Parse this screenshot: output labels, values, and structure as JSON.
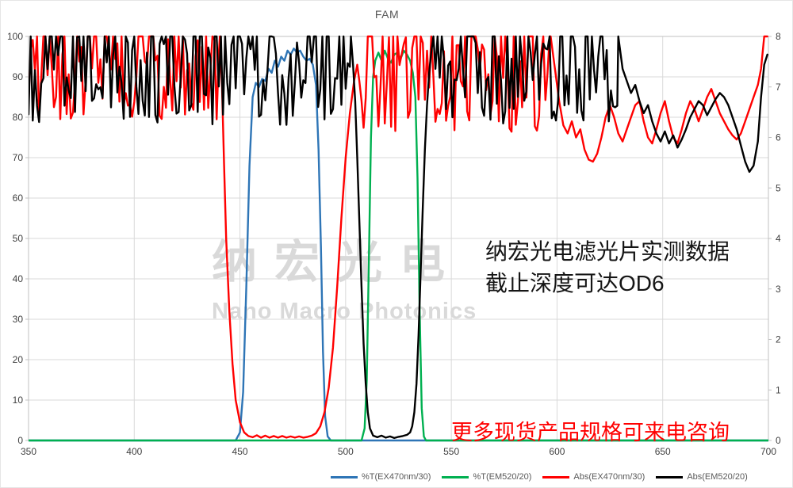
{
  "title": "FAM",
  "watermark": {
    "cjk": "纳宏光电",
    "latin": "Nano Macro Photonics"
  },
  "annotation": {
    "line1": "纳宏光电滤光片实测数据",
    "line2": "截止深度可达OD6"
  },
  "footer_note": "更多现货产品规格可来电咨询",
  "colors": {
    "blue": "#2E75B6",
    "green": "#00B050",
    "red": "#FF0000",
    "black": "#000000",
    "grid": "#D9D9D9",
    "axis_border": "#C0C0C0",
    "tick_text": "#404040",
    "title_text": "#595959",
    "watermark": "#D9D9D9",
    "note_red": "#FF0000"
  },
  "chart_data": {
    "type": "line",
    "title": "FAM",
    "x_axis": {
      "min": 350,
      "max": 700,
      "ticks": [
        350,
        400,
        450,
        500,
        550,
        600,
        650,
        700
      ]
    },
    "y_left": {
      "min": 0,
      "max": 100,
      "ticks": [
        0,
        10,
        20,
        30,
        40,
        50,
        60,
        70,
        80,
        90,
        100
      ]
    },
    "y_right": {
      "min": 0,
      "max": 8,
      "ticks": [
        0,
        1,
        2,
        3,
        4,
        5,
        6,
        7,
        8
      ]
    },
    "grid": true,
    "legend_position": "bottom",
    "legend": [
      {
        "label": "%T(EX470nm/30)",
        "color": "#2E75B6"
      },
      {
        "label": "%T(EM520/20)",
        "color": "#00B050"
      },
      {
        "label": "Abs(EX470nm/30)",
        "color": "#FF0000"
      },
      {
        "label": "Abs(EM520/20)",
        "color": "#000000"
      }
    ],
    "series": [
      {
        "name": "%T(EX470nm/30)",
        "color": "#2E75B6",
        "axis": "left",
        "segments": [
          {
            "type": "points",
            "pts": [
              [
                350,
                0
              ],
              [
                448,
                0
              ],
              [
                450,
                2
              ],
              [
                451.5,
                12
              ],
              [
                453,
                38
              ],
              [
                454.5,
                68
              ],
              [
                456,
                85
              ],
              [
                457.5,
                88.5
              ],
              [
                459,
                87.5
              ],
              [
                460.5,
                89.5
              ],
              [
                462,
                89
              ],
              [
                463.5,
                92
              ],
              [
                465,
                91
              ],
              [
                466.5,
                94
              ],
              [
                468,
                92.5
              ],
              [
                469.5,
                95
              ],
              [
                471,
                94
              ],
              [
                472.5,
                96.5
              ],
              [
                474,
                95.5
              ],
              [
                475.5,
                97
              ],
              [
                477,
                96
              ],
              [
                478.5,
                96.5
              ],
              [
                480,
                95
              ],
              [
                481.5,
                94
              ],
              [
                483,
                94.5
              ],
              [
                484.5,
                93
              ],
              [
                486,
                88
              ],
              [
                487.2,
                72
              ],
              [
                488.3,
                48
              ],
              [
                489.3,
                22
              ],
              [
                490.3,
                6
              ],
              [
                491.5,
                1
              ],
              [
                493,
                0
              ],
              [
                700,
                0
              ]
            ]
          }
        ]
      },
      {
        "name": "%T(EM520/20)",
        "color": "#00B050",
        "axis": "left",
        "segments": [
          {
            "type": "points",
            "pts": [
              [
                350,
                0
              ],
              [
                507.5,
                0
              ],
              [
                509,
                3
              ],
              [
                510,
                15
              ],
              [
                511,
                45
              ],
              [
                512,
                75
              ],
              [
                513,
                90
              ],
              [
                514,
                94
              ],
              [
                515.5,
                96
              ],
              [
                517,
                94
              ],
              [
                518.5,
                96.5
              ],
              [
                520,
                94.5
              ],
              [
                521.5,
                93.5
              ],
              [
                523,
                95.5
              ],
              [
                524.5,
                96
              ],
              [
                526,
                94.5
              ],
              [
                527.5,
                96.5
              ],
              [
                529,
                95.5
              ],
              [
                530.5,
                94
              ],
              [
                531.8,
                91
              ],
              [
                533,
                85
              ],
              [
                534,
                65
              ],
              [
                535,
                32
              ],
              [
                536,
                8
              ],
              [
                537,
                1
              ],
              [
                538,
                0
              ],
              [
                700,
                0
              ]
            ]
          }
        ]
      },
      {
        "name": "Abs(EX470nm/30)",
        "color": "#FF0000",
        "axis": "left",
        "segments": [
          {
            "type": "noise",
            "from": 350,
            "to": 440,
            "step": 1.0,
            "min": 79,
            "max": 105,
            "seed": 13
          },
          {
            "type": "points",
            "pts": [
              [
                440.5,
                100
              ],
              [
                441.5,
                88
              ],
              [
                442.5,
                68
              ],
              [
                443.5,
                50
              ],
              [
                445,
                32
              ],
              [
                446.5,
                19
              ],
              [
                448,
                10
              ],
              [
                450,
                4.5
              ],
              [
                452,
                2
              ],
              [
                454,
                1.1
              ],
              [
                456,
                0.8
              ],
              [
                458,
                1.3
              ],
              [
                460,
                0.7
              ],
              [
                462,
                1.2
              ],
              [
                464,
                0.7
              ],
              [
                466,
                1.1
              ],
              [
                468,
                0.7
              ],
              [
                470,
                1.1
              ],
              [
                472,
                0.7
              ],
              [
                474,
                1.0
              ],
              [
                476,
                0.7
              ],
              [
                478,
                1.0
              ],
              [
                480,
                0.7
              ],
              [
                482,
                0.9
              ],
              [
                484,
                1.2
              ],
              [
                486,
                1.8
              ],
              [
                488,
                3.5
              ],
              [
                490,
                7
              ],
              [
                492,
                13
              ],
              [
                494,
                23
              ],
              [
                496,
                38
              ],
              [
                498,
                55
              ],
              [
                500,
                70
              ],
              [
                502,
                81
              ],
              [
                504,
                89
              ],
              [
                505.5,
                93
              ]
            ]
          },
          {
            "type": "noise",
            "from": 506.5,
            "to": 597,
            "step": 1.0,
            "min": 76,
            "max": 105,
            "seed": 29
          },
          {
            "type": "points",
            "pts": [
              [
                597,
                100
              ],
              [
                599,
                92
              ],
              [
                601,
                84
              ],
              [
                603,
                78
              ],
              [
                605,
                76
              ],
              [
                607,
                79
              ],
              [
                609,
                75
              ],
              [
                611,
                77
              ],
              [
                613,
                72
              ],
              [
                615,
                69.5
              ],
              [
                617,
                69
              ],
              [
                619,
                71
              ],
              [
                621,
                75
              ],
              [
                623,
                80
              ],
              [
                625,
                83
              ],
              [
                627,
                80
              ],
              [
                629,
                76
              ],
              [
                631,
                74
              ],
              [
                633,
                77
              ],
              [
                635,
                80
              ],
              [
                637,
                83
              ],
              [
                639,
                84
              ],
              [
                641,
                79
              ],
              [
                643,
                75
              ],
              [
                645,
                73.5
              ],
              [
                647,
                77
              ],
              [
                649,
                81
              ],
              [
                651,
                84
              ],
              [
                653,
                79
              ],
              [
                655,
                75
              ],
              [
                657,
                73.5
              ],
              [
                659,
                77
              ],
              [
                661,
                81
              ],
              [
                663,
                84
              ],
              [
                665,
                82
              ],
              [
                667,
                79
              ],
              [
                669,
                82
              ],
              [
                671,
                85
              ],
              [
                673,
                87
              ],
              [
                675,
                84
              ],
              [
                677,
                81
              ],
              [
                679,
                79
              ],
              [
                681,
                77
              ],
              [
                683,
                75.5
              ],
              [
                685,
                74.5
              ],
              [
                687,
                76
              ],
              [
                689,
                79
              ],
              [
                691,
                82
              ],
              [
                693,
                85
              ],
              [
                695,
                88
              ],
              [
                696.5,
                92
              ],
              [
                698,
                100
              ],
              [
                699.5,
                100
              ]
            ]
          }
        ]
      },
      {
        "name": "Abs(EM520/20)",
        "color": "#000000",
        "axis": "left",
        "segments": [
          {
            "type": "noise",
            "from": 350,
            "to": 502,
            "step": 1.0,
            "min": 78,
            "max": 105,
            "seed": 7
          },
          {
            "type": "points",
            "pts": [
              [
                502.5,
                100
              ],
              [
                503.5,
                93
              ],
              [
                504.5,
                84
              ],
              [
                505.5,
                70
              ],
              [
                506.5,
                54
              ],
              [
                507.5,
                38
              ],
              [
                508.5,
                24
              ],
              [
                509.5,
                14
              ],
              [
                510.5,
                7
              ],
              [
                511.5,
                3
              ],
              [
                513,
                1.2
              ],
              [
                515,
                0.8
              ],
              [
                517,
                1.2
              ],
              [
                519,
                0.7
              ],
              [
                521,
                1.0
              ],
              [
                523,
                0.6
              ],
              [
                525,
                0.9
              ],
              [
                527,
                1.1
              ],
              [
                529,
                1.4
              ],
              [
                530.5,
                2
              ],
              [
                531.5,
                3.5
              ],
              [
                532.5,
                7
              ],
              [
                533.5,
                14
              ],
              [
                534.5,
                26
              ],
              [
                535.5,
                42
              ],
              [
                536.5,
                58
              ],
              [
                537.5,
                72
              ],
              [
                538.5,
                83
              ],
              [
                539.5,
                91
              ],
              [
                540.5,
                96
              ]
            ]
          },
          {
            "type": "noise",
            "from": 541.5,
            "to": 629,
            "step": 1.0,
            "min": 78,
            "max": 105,
            "seed": 41
          },
          {
            "type": "points",
            "pts": [
              [
                629,
                100
              ],
              [
                631,
                92
              ],
              [
                633,
                89
              ],
              [
                635,
                86
              ],
              [
                637,
                88
              ],
              [
                639,
                84
              ],
              [
                641,
                81
              ],
              [
                643,
                83
              ],
              [
                645,
                79
              ],
              [
                647,
                76
              ],
              [
                649,
                74
              ],
              [
                651,
                76.5
              ],
              [
                653,
                73.5
              ],
              [
                655,
                75.5
              ],
              [
                657,
                72.5
              ],
              [
                659,
                74.5
              ],
              [
                661,
                77
              ],
              [
                663,
                80
              ],
              [
                665,
                82
              ],
              [
                667,
                84
              ],
              [
                669,
                83
              ],
              [
                671,
                80.5
              ],
              [
                673,
                82.5
              ],
              [
                675,
                84.5
              ],
              [
                677,
                86
              ],
              [
                679,
                85
              ],
              [
                681,
                83
              ],
              [
                683,
                80
              ],
              [
                685,
                77
              ],
              [
                687,
                73
              ],
              [
                689,
                69
              ],
              [
                691,
                66.5
              ],
              [
                693,
                68
              ],
              [
                695,
                74
              ],
              [
                696.5,
                85
              ],
              [
                698,
                93
              ],
              [
                699.5,
                95.5
              ]
            ]
          }
        ]
      }
    ]
  }
}
